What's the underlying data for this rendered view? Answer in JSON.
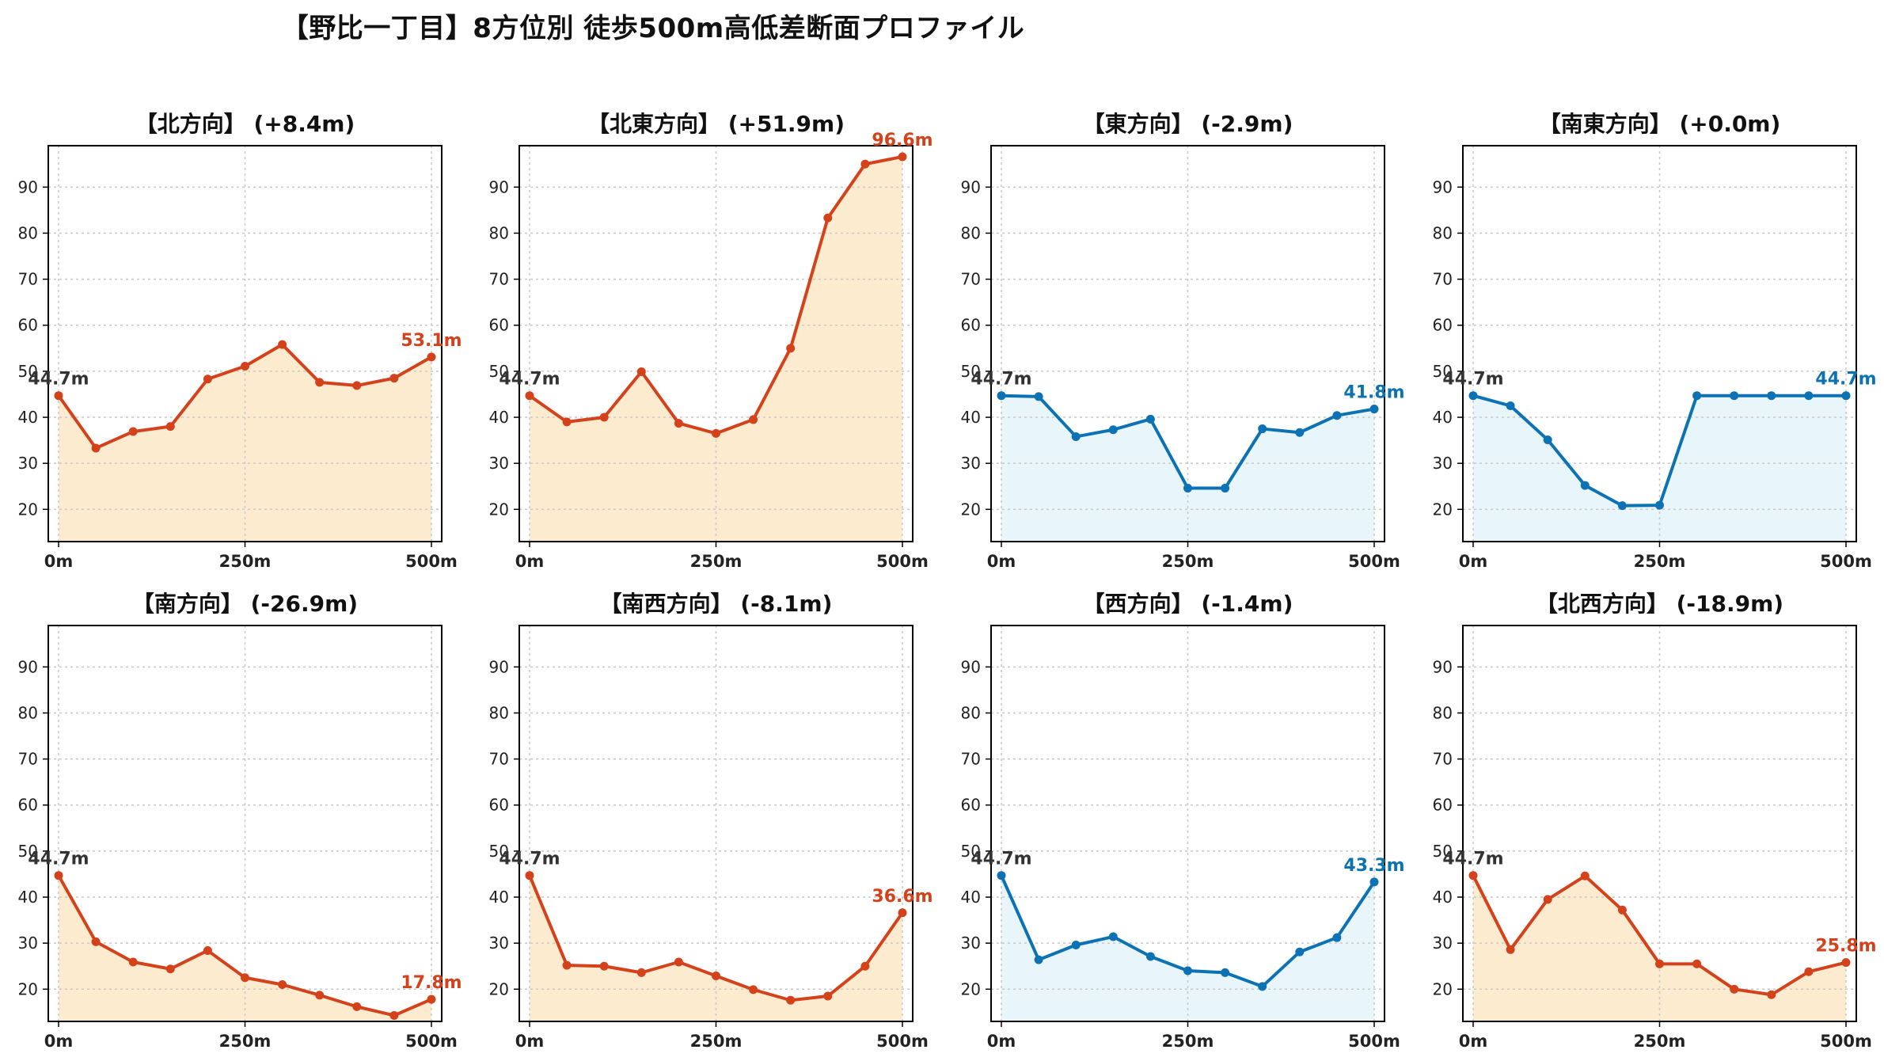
{
  "title": "【野比一丁目】8方位別 徒歩500m高低差断面プロファイル",
  "colors": {
    "up_line": "#d4421c",
    "up_fill": "#fdebd0",
    "down_line": "#0d72b4",
    "down_fill": "#e8f6fb",
    "start_label": "#333333",
    "grid": "#c8c8c8",
    "tick": "#222222"
  },
  "chart_data": [
    {
      "type": "area",
      "title": "【北方向】 (+8.4m)",
      "trend": "up",
      "x": [
        0,
        50,
        100,
        150,
        200,
        250,
        300,
        350,
        400,
        450,
        500
      ],
      "values": [
        44.7,
        33.3,
        36.9,
        38.0,
        48.3,
        51.1,
        55.8,
        47.6,
        46.9,
        48.5,
        53.1
      ],
      "start_label": "44.7m",
      "end_label": "53.1m",
      "xticks": [
        "0m",
        "250m",
        "500m"
      ],
      "yticks": [
        "20",
        "30",
        "40",
        "50",
        "60",
        "70",
        "80",
        "90"
      ],
      "ylim": [
        13,
        99
      ],
      "grid": true
    },
    {
      "type": "area",
      "title": "【北東方向】 (+51.9m)",
      "trend": "up",
      "x": [
        0,
        50,
        100,
        150,
        200,
        250,
        300,
        350,
        400,
        450,
        500
      ],
      "values": [
        44.7,
        39.0,
        40.0,
        49.9,
        38.7,
        36.5,
        39.5,
        55.0,
        83.3,
        95.0,
        96.6
      ],
      "start_label": "44.7m",
      "end_label": "96.6m",
      "xticks": [
        "0m",
        "250m",
        "500m"
      ],
      "yticks": [
        "20",
        "30",
        "40",
        "50",
        "60",
        "70",
        "80",
        "90"
      ],
      "ylim": [
        13,
        99
      ],
      "grid": true
    },
    {
      "type": "area",
      "title": "【東方向】 (-2.9m)",
      "trend": "down",
      "x": [
        0,
        50,
        100,
        150,
        200,
        250,
        300,
        350,
        400,
        450,
        500
      ],
      "values": [
        44.7,
        44.5,
        35.8,
        37.3,
        39.6,
        24.6,
        24.6,
        37.5,
        36.7,
        40.4,
        41.8
      ],
      "start_label": "44.7m",
      "end_label": "41.8m",
      "xticks": [
        "0m",
        "250m",
        "500m"
      ],
      "yticks": [
        "20",
        "30",
        "40",
        "50",
        "60",
        "70",
        "80",
        "90"
      ],
      "ylim": [
        13,
        99
      ],
      "grid": true
    },
    {
      "type": "area",
      "title": "【南東方向】 (+0.0m)",
      "trend": "down",
      "x": [
        0,
        50,
        100,
        150,
        200,
        250,
        300,
        350,
        400,
        450,
        500
      ],
      "values": [
        44.7,
        42.5,
        35.1,
        25.2,
        20.8,
        20.9,
        44.7,
        44.7,
        44.7,
        44.7,
        44.7
      ],
      "start_label": "44.7m",
      "end_label": "44.7m",
      "xticks": [
        "0m",
        "250m",
        "500m"
      ],
      "yticks": [
        "20",
        "30",
        "40",
        "50",
        "60",
        "70",
        "80",
        "90"
      ],
      "ylim": [
        13,
        99
      ],
      "grid": true
    },
    {
      "type": "area",
      "title": "【南方向】 (-26.9m)",
      "trend": "up",
      "x": [
        0,
        50,
        100,
        150,
        200,
        250,
        300,
        350,
        400,
        450,
        500
      ],
      "values": [
        44.7,
        30.3,
        25.9,
        24.4,
        28.4,
        22.5,
        21.0,
        18.7,
        16.2,
        14.3,
        17.8
      ],
      "start_label": "44.7m",
      "end_label": "17.8m",
      "xticks": [
        "0m",
        "250m",
        "500m"
      ],
      "yticks": [
        "20",
        "30",
        "40",
        "50",
        "60",
        "70",
        "80",
        "90"
      ],
      "ylim": [
        13,
        99
      ],
      "grid": true
    },
    {
      "type": "area",
      "title": "【南西方向】 (-8.1m)",
      "trend": "up",
      "x": [
        0,
        50,
        100,
        150,
        200,
        250,
        300,
        350,
        400,
        450,
        500
      ],
      "values": [
        44.7,
        25.2,
        25.0,
        23.6,
        25.9,
        22.9,
        19.9,
        17.6,
        18.5,
        25.0,
        36.6
      ],
      "start_label": "44.7m",
      "end_label": "36.6m",
      "xticks": [
        "0m",
        "250m",
        "500m"
      ],
      "yticks": [
        "20",
        "30",
        "40",
        "50",
        "60",
        "70",
        "80",
        "90"
      ],
      "ylim": [
        13,
        99
      ],
      "grid": true
    },
    {
      "type": "area",
      "title": "【西方向】 (-1.4m)",
      "trend": "down",
      "x": [
        0,
        50,
        100,
        150,
        200,
        250,
        300,
        350,
        400,
        450,
        500
      ],
      "values": [
        44.7,
        26.4,
        29.6,
        31.4,
        27.1,
        24.0,
        23.6,
        20.6,
        28.1,
        31.2,
        43.3
      ],
      "start_label": "44.7m",
      "end_label": "43.3m",
      "xticks": [
        "0m",
        "250m",
        "500m"
      ],
      "yticks": [
        "20",
        "30",
        "40",
        "50",
        "60",
        "70",
        "80",
        "90"
      ],
      "ylim": [
        13,
        99
      ],
      "grid": true
    },
    {
      "type": "area",
      "title": "【北西方向】 (-18.9m)",
      "trend": "up",
      "x": [
        0,
        50,
        100,
        150,
        200,
        250,
        300,
        350,
        400,
        450,
        500
      ],
      "values": [
        44.7,
        28.6,
        39.5,
        44.6,
        37.2,
        25.5,
        25.5,
        20.0,
        18.8,
        23.8,
        25.8
      ],
      "start_label": "44.7m",
      "end_label": "25.8m",
      "xticks": [
        "0m",
        "250m",
        "500m"
      ],
      "yticks": [
        "20",
        "30",
        "40",
        "50",
        "60",
        "70",
        "80",
        "90"
      ],
      "ylim": [
        13,
        99
      ],
      "grid": true
    }
  ]
}
